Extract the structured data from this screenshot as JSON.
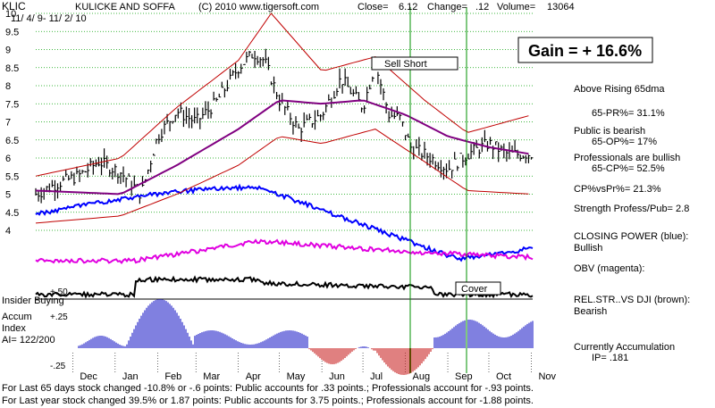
{
  "header": {
    "ticker": "KLIC",
    "company": "KULICKE AND SOFFA",
    "copyright": "(C) 2010 www.tigersoft.com",
    "close_label": "Close=",
    "close_value": "6.12",
    "change_label": "Change=",
    "change_value": ".12",
    "volume_label": "Volume=",
    "volume_value": "13064",
    "date_range": "11/ 4/ 9- 11/ 2/ 10"
  },
  "gain_box": "Gain = + 16.6%",
  "annotations": {
    "sell_short": "Sell Short",
    "cover": "Cover",
    "insider_buying": "Insider Buying",
    "accum_index": [
      "Accum",
      "Index",
      "AI= 122/200"
    ],
    "lower_plus50": "+.50",
    "lower_plus25": "+.25",
    "lower_minus25": "-.25"
  },
  "right_panel": {
    "above_65dma": "Above Rising 65dma",
    "pr": "65-PR%=  31.1%",
    "public": "Public is bearish",
    "op": "65-OP%=  17%",
    "professionals": "Professionals are bullish",
    "cp": "65-CP%=  52.5%",
    "cpvspr": "CP%vsPr%=  21.3%",
    "strength": "Strength Profess/Pub= 2.8",
    "closing_power": "CLOSING POWER (blue):",
    "closing_power_value": "Bullish",
    "obv": "OBV (magenta):",
    "relstr": "REL.STR..VS DJI (brown):",
    "relstr_value": "Bearish",
    "currently_accum": "Currently Accumulation",
    "ip": "IP=  .181"
  },
  "footer": {
    "line1": "For Last 65 days stock changed -10.8% or -.6 points:  Public accounts for  .33 points.;  Professionals account for -.93 points.",
    "line2": "For Last year stock changed  39.5% or  1.87 points:  Public accounts for  3.75 points.;  Professionals account for -1.88 points.",
    "overlay_date": "11/2/10"
  },
  "chart_data": {
    "type": "line",
    "title": "KULICKE AND SOFFA",
    "x_labels": [
      "Dec",
      "Jan",
      "Feb",
      "Mar",
      "Apr",
      "May",
      "Jun",
      "Jul",
      "Aug",
      "Sep",
      "Oct",
      "Nov"
    ],
    "y_ticks": [
      10,
      9.5,
      9,
      8.5,
      8,
      7.5,
      7,
      6.5,
      6,
      5.5,
      5,
      4.5,
      4
    ],
    "ylim": [
      4,
      10
    ],
    "grid": true,
    "series": [
      {
        "name": "price",
        "color": "#000000",
        "x": [
          "2009-11-04",
          "2009-11-20",
          "2009-12-05",
          "2009-12-20",
          "2010-01-05",
          "2010-01-20",
          "2010-02-01",
          "2010-02-15",
          "2010-03-01",
          "2010-03-15",
          "2010-04-01",
          "2010-04-12",
          "2010-04-20",
          "2010-05-01",
          "2010-05-15",
          "2010-06-01",
          "2010-06-15",
          "2010-07-01",
          "2010-07-10",
          "2010-07-20",
          "2010-07-28",
          "2010-08-05",
          "2010-08-20",
          "2010-09-01",
          "2010-09-15",
          "2010-10-01",
          "2010-10-15",
          "2010-11-02"
        ],
        "values": [
          5.0,
          5.3,
          5.5,
          5.9,
          5.6,
          5.0,
          6.6,
          7.3,
          7.0,
          7.5,
          8.5,
          8.9,
          8.7,
          7.6,
          6.8,
          7.2,
          8.2,
          7.4,
          8.6,
          7.2,
          7.1,
          6.3,
          6.0,
          5.7,
          6.1,
          6.4,
          6.1,
          6.12
        ]
      },
      {
        "name": "65-dma",
        "color": "#800080",
        "x": [
          "2009-11-04",
          "2010-01-05",
          "2010-02-15",
          "2010-04-01",
          "2010-05-01",
          "2010-06-01",
          "2010-07-01",
          "2010-08-01",
          "2010-09-01",
          "2010-10-01",
          "2010-11-02"
        ],
        "values": [
          5.1,
          5.0,
          5.8,
          6.8,
          7.6,
          7.5,
          7.6,
          7.2,
          6.6,
          6.3,
          6.1
        ]
      },
      {
        "name": "upper band",
        "color": "#c00000",
        "x": [
          "2009-11-04",
          "2010-01-05",
          "2010-02-15",
          "2010-04-01",
          "2010-04-25",
          "2010-06-01",
          "2010-07-10",
          "2010-08-15",
          "2010-09-15",
          "2010-11-02"
        ],
        "values": [
          5.5,
          6.0,
          7.4,
          8.7,
          10.0,
          8.4,
          8.8,
          7.6,
          6.7,
          7.2
        ]
      },
      {
        "name": "lower band",
        "color": "#c00000",
        "x": [
          "2009-11-04",
          "2010-01-05",
          "2010-02-15",
          "2010-04-01",
          "2010-05-01",
          "2010-06-01",
          "2010-07-10",
          "2010-08-15",
          "2010-09-15",
          "2010-11-02"
        ],
        "values": [
          4.2,
          4.4,
          5.0,
          5.8,
          6.6,
          6.4,
          6.8,
          5.9,
          5.1,
          5.0
        ]
      }
    ],
    "indicators": [
      {
        "name": "CLOSING POWER (blue)",
        "color": "#0000ff"
      },
      {
        "name": "OBV (magenta)",
        "color": "#e000e0"
      },
      {
        "name": "REL.STR..VS DJI (brown)",
        "color": "#000000"
      },
      {
        "name": "Accum Index",
        "color": "#0000c0",
        "negative_color": "#c00000"
      }
    ],
    "signals": [
      {
        "label": "Sell Short",
        "date": "2010-07-28",
        "price": 8.0
      },
      {
        "label": "Cover",
        "date": "2010-09-05",
        "price": 5.5
      }
    ]
  }
}
